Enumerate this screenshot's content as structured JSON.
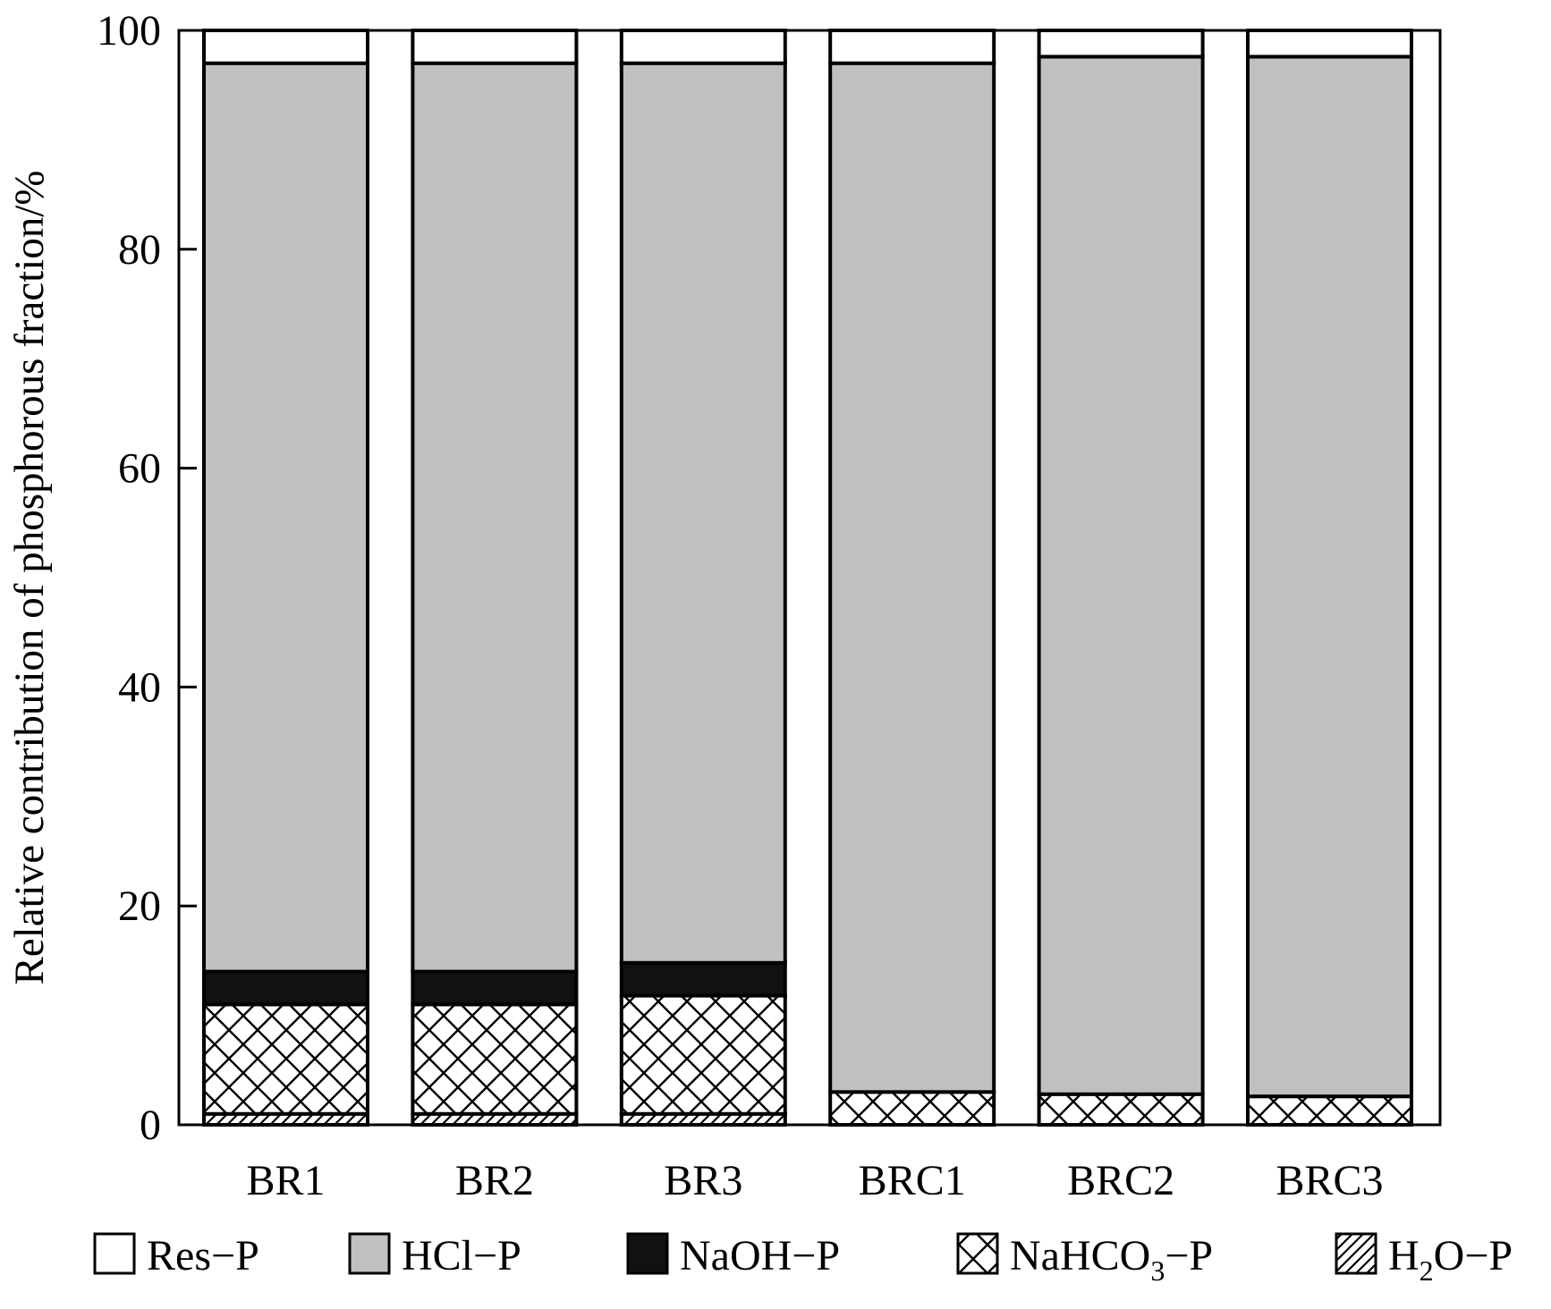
{
  "chart_data": {
    "type": "bar",
    "stacked": true,
    "categories": [
      "BR1",
      "BR2",
      "BR3",
      "BRC1",
      "BRC2",
      "BRC3"
    ],
    "ylabel": "Relative contribution of phosphorous fraction/%",
    "ylim": [
      0,
      100
    ],
    "yticks": [
      0,
      20,
      40,
      60,
      80,
      100
    ],
    "legend_position": "bottom",
    "series": [
      {
        "name": "H2O-P",
        "legend_main": "H",
        "legend_sub": "2",
        "legend_tail": "O−P",
        "pattern": "diagonal-hatch",
        "values": [
          1.0,
          1.0,
          1.0,
          0.0,
          0.0,
          0.0
        ]
      },
      {
        "name": "NaHCO3-P",
        "legend_main": "NaHCO",
        "legend_sub": "3",
        "legend_tail": "−P",
        "pattern": "cross-hatch",
        "values": [
          10.0,
          10.0,
          10.8,
          3.0,
          2.8,
          2.6
        ]
      },
      {
        "name": "NaOH-P",
        "legend_main": "NaOH−P",
        "legend_sub": "",
        "legend_tail": "",
        "pattern": "solid-black",
        "values": [
          3.0,
          3.0,
          3.0,
          0.0,
          0.0,
          0.0
        ]
      },
      {
        "name": "HCl-P",
        "legend_main": "HCl−P",
        "legend_sub": "",
        "legend_tail": "",
        "pattern": "solid-gray",
        "values": [
          83.0,
          83.0,
          82.2,
          94.0,
          94.8,
          95.0
        ]
      },
      {
        "name": "Res-P",
        "legend_main": "Res−P",
        "legend_sub": "",
        "legend_tail": "",
        "pattern": "white",
        "values": [
          3.0,
          3.0,
          3.0,
          3.0,
          2.4,
          2.4
        ]
      }
    ],
    "legend_order": [
      "Res-P",
      "HCl-P",
      "NaOH-P",
      "NaHCO3-P",
      "H2O-P"
    ],
    "colors": {
      "gray": "#c0c0c0",
      "black": "#111111",
      "white": "#ffffff",
      "edge": "#000000"
    }
  }
}
